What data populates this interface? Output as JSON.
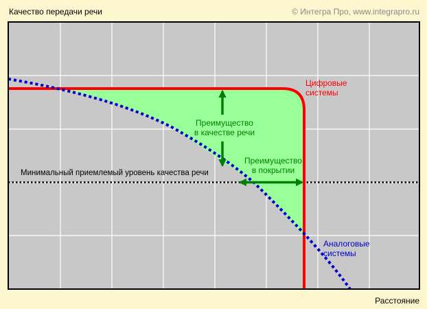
{
  "header": {
    "y_axis_title": "Качество передачи речи",
    "copyright": "© Интегра Про, www.integrapro.ru"
  },
  "x_axis_title": "Расстояние",
  "threshold": {
    "label": "Минимальный приемлемый уровень качества  речи"
  },
  "digital": {
    "line1": "Цифровые",
    "line2": "системы",
    "color": "#ff0000"
  },
  "analog": {
    "line1": "Аналоговые",
    "line2": "системы",
    "color": "#0000cc"
  },
  "advantage_quality": {
    "line1": "Преимущество",
    "line2": "в качестве речи"
  },
  "advantage_coverage": {
    "line1": "Преимущество",
    "line2": "в покрытии"
  },
  "colors": {
    "background": "#fdf7cf",
    "plot_fill": "#c8c8c8",
    "grid": "#ffffff",
    "advantage_fill": "#99ff99",
    "arrows": "#008000",
    "annotation_text": "#008000"
  }
}
